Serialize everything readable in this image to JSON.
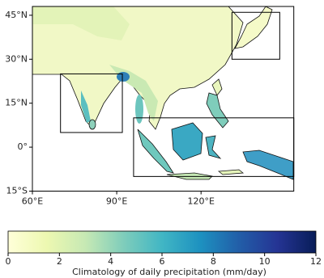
{
  "chart_data": {
    "type": "map",
    "xlim": [
      60,
      153
    ],
    "ylim": [
      -15,
      48
    ],
    "xticks": [
      {
        "value": 60,
        "label": "60°E"
      },
      {
        "value": 90,
        "label": "90°E"
      },
      {
        "value": 120,
        "label": "120°E"
      }
    ],
    "yticks": [
      {
        "value": 45,
        "label": "45°N"
      },
      {
        "value": 30,
        "label": "30°N"
      },
      {
        "value": 15,
        "label": "15°N"
      },
      {
        "value": 0,
        "label": "0°"
      },
      {
        "value": -15,
        "label": "15°S"
      }
    ],
    "regions": [
      {
        "lon": [
          70,
          92
        ],
        "lat": [
          5,
          25
        ]
      },
      {
        "lon": [
          131,
          148
        ],
        "lat": [
          30,
          46
        ]
      },
      {
        "lon": [
          96,
          153
        ],
        "lat": [
          -10,
          10
        ]
      }
    ],
    "region_color": "#000000",
    "colorbar": {
      "label": "Climatology of daily precipitation (mm/day)",
      "lim": [
        0,
        12
      ],
      "ticks": [
        0,
        2,
        4,
        6,
        8,
        10,
        12
      ],
      "colormap": [
        "#ffffd9",
        "#edf8b1",
        "#c7e9b4",
        "#7fcdbb",
        "#41b6c4",
        "#1d91c0",
        "#225ea8",
        "#253494",
        "#081d58"
      ]
    }
  }
}
